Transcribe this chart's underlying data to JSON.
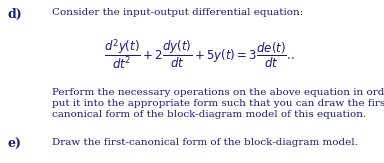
{
  "label_d": "d)",
  "label_e": "e)",
  "text_d_intro": "Consider the input-output differential equation:",
  "equation": "$\\dfrac{d^2y(t)}{dt^2} + 2\\dfrac{dy(t)}{dt} + 5y(t) = 3\\dfrac{de(t)}{dt}$..",
  "text_d_body1": "Perform the necessary operations on the above equation in order to",
  "text_d_body2": "put it into the appropriate form such that you can draw the first-",
  "text_d_body3": "canonical form of the block-diagram model of this equation.",
  "text_e": "Draw the first-canonical form of the block-diagram model.",
  "bg_color": "#ffffff",
  "text_color": "#1a1a7a",
  "font_size_label": 9,
  "font_size_text": 7.5,
  "font_size_eq": 8.5,
  "fig_width": 3.84,
  "fig_height": 1.63,
  "dpi": 100
}
